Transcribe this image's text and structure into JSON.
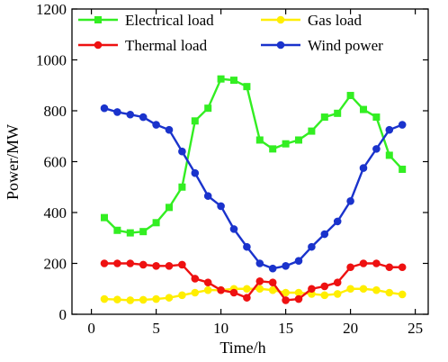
{
  "chart_data": {
    "type": "line",
    "xlabel": "Time/h",
    "ylabel": "Power/MW",
    "xlim": [
      -1.5,
      26
    ],
    "ylim": [
      0,
      1200
    ],
    "xticks": [
      0,
      5,
      10,
      15,
      20,
      25
    ],
    "yticks": [
      0,
      200,
      400,
      600,
      800,
      1000,
      1200
    ],
    "grid": false,
    "legend": "top, two columns",
    "x": [
      1,
      2,
      3,
      4,
      5,
      6,
      7,
      8,
      9,
      10,
      11,
      12,
      13,
      14,
      15,
      16,
      17,
      18,
      19,
      20,
      21,
      22,
      23,
      24
    ],
    "series": [
      {
        "name": "Electrical load",
        "color": "#33ee22",
        "marker": "square",
        "values": [
          380,
          330,
          320,
          325,
          360,
          420,
          500,
          760,
          810,
          925,
          920,
          895,
          685,
          650,
          670,
          685,
          720,
          775,
          790,
          860,
          805,
          775,
          625,
          570
        ]
      },
      {
        "name": "Gas load",
        "color": "#ffee00",
        "marker": "circle",
        "values": [
          60,
          58,
          55,
          57,
          60,
          65,
          75,
          85,
          95,
          95,
          100,
          100,
          100,
          95,
          85,
          85,
          80,
          75,
          80,
          100,
          100,
          95,
          85,
          78
        ]
      },
      {
        "name": "Thermal load",
        "color": "#ee1111",
        "marker": "circle",
        "values": [
          200,
          200,
          200,
          195,
          190,
          190,
          195,
          140,
          125,
          95,
          85,
          65,
          130,
          125,
          55,
          60,
          100,
          110,
          125,
          185,
          200,
          200,
          185,
          185
        ]
      },
      {
        "name": "Wind power",
        "color": "#1a33cc",
        "marker": "circle",
        "values": [
          810,
          795,
          785,
          775,
          745,
          725,
          640,
          555,
          465,
          425,
          335,
          265,
          200,
          180,
          190,
          210,
          265,
          315,
          365,
          445,
          575,
          650,
          725,
          745
        ]
      }
    ]
  }
}
